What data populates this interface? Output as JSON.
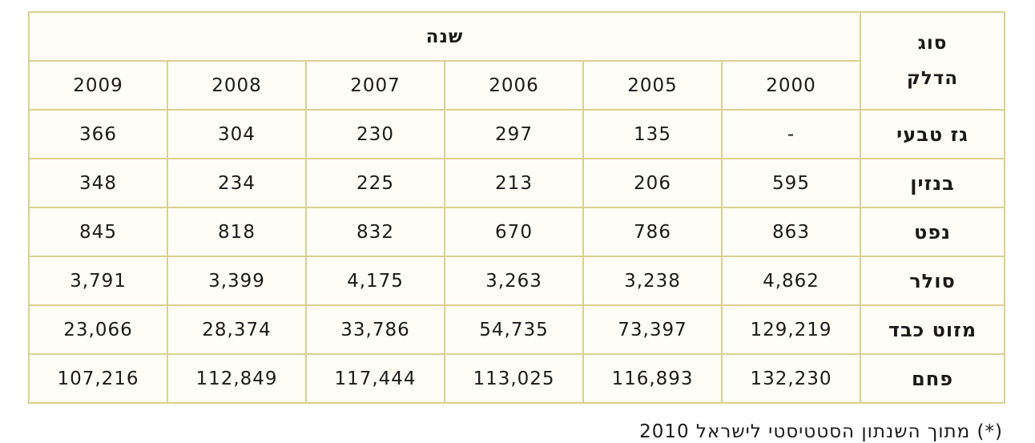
{
  "table": {
    "corner": [
      "סוג",
      "הדלק"
    ],
    "group_header": "שנה",
    "years": [
      "2000",
      "2005",
      "2006",
      "2007",
      "2008",
      "2009"
    ],
    "rows": [
      {
        "label": "גז טבעי",
        "values": [
          "-",
          "135",
          "297",
          "230",
          "304",
          "366"
        ]
      },
      {
        "label": "בנזין",
        "values": [
          "595",
          "206",
          "213",
          "225",
          "234",
          "348"
        ]
      },
      {
        "label": "נפט",
        "values": [
          "863",
          "786",
          "670",
          "832",
          "818",
          "845"
        ]
      },
      {
        "label": "סולר",
        "values": [
          "4,862",
          "3,238",
          "3,263",
          "4,175",
          "3,399",
          "3,791"
        ]
      },
      {
        "label": "מזוט כבד",
        "values": [
          "129,219",
          "73,397",
          "54,735",
          "33,786",
          "28,374",
          "23,066"
        ]
      },
      {
        "label": "פחם",
        "values": [
          "132,230",
          "116,893",
          "113,025",
          "117,444",
          "112,849",
          "107,216"
        ]
      }
    ]
  },
  "footnote": "(*) מתוך השנתון הסטטיסטי לישראל 2010"
}
